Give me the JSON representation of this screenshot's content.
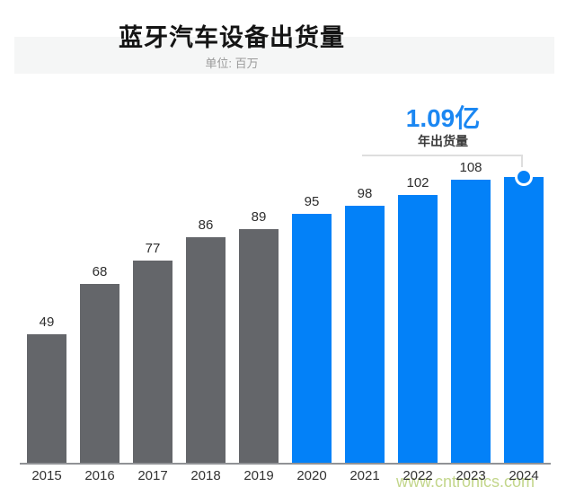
{
  "header": {
    "title": "蓝牙汽车设备出货量",
    "subtitle": "单位: 百万"
  },
  "annotation": {
    "headline": "1.09亿",
    "label": "年出货量"
  },
  "watermark": "www.cntronics.com",
  "colors": {
    "bar_gray": "#64666a",
    "bar_blue": "#0381f8",
    "annotation_blue": "#1b87f2",
    "watermark_green": "#c3d68b"
  },
  "chart_data": {
    "type": "bar",
    "title": "蓝牙汽车设备出货量",
    "unit_label": "单位: 百万",
    "categories": [
      "2015",
      "2016",
      "2017",
      "2018",
      "2019",
      "2020",
      "2021",
      "2022",
      "2023",
      "2024"
    ],
    "values": [
      49,
      68,
      77,
      86,
      89,
      95,
      98,
      102,
      108,
      109
    ],
    "value_labels": [
      "49",
      "68",
      "77",
      "86",
      "89",
      "95",
      "98",
      "102",
      "108",
      ""
    ],
    "bar_color_keys": [
      "gray",
      "gray",
      "gray",
      "gray",
      "gray",
      "blue",
      "blue",
      "blue",
      "blue",
      "blue"
    ],
    "highlight": {
      "category": "2024",
      "value_text": "1.09亿",
      "label": "年出货量",
      "marker": "circle"
    },
    "xlabel": "",
    "ylabel": "",
    "ylim": [
      0,
      120
    ],
    "grid": false,
    "legend": false
  }
}
